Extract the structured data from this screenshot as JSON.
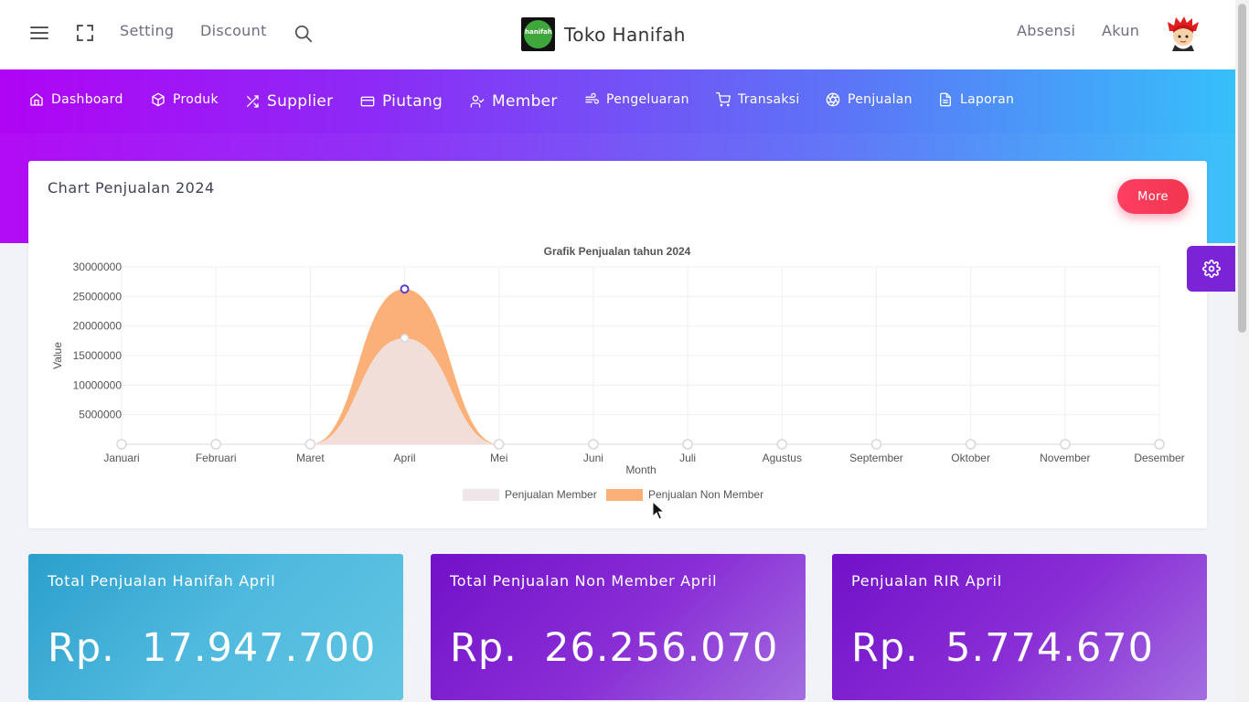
{
  "topbar": {
    "links": [
      "Setting",
      "Discount"
    ],
    "brand_name": "Toko Hanifah",
    "brand_logo_text": "hanifah",
    "right_links": [
      "Absensi",
      "Akun"
    ]
  },
  "nav": {
    "items": [
      {
        "label": "Dashboard",
        "icon": "home-icon"
      },
      {
        "label": "Produk",
        "icon": "box-icon"
      },
      {
        "label": "Supplier",
        "icon": "shuffle-icon"
      },
      {
        "label": "Piutang",
        "icon": "credit-card-icon"
      },
      {
        "label": "Member",
        "icon": "user-check-icon"
      },
      {
        "label": "Pengeluaran",
        "icon": "wind-icon"
      },
      {
        "label": "Transaksi",
        "icon": "cart-icon"
      },
      {
        "label": "Penjualan",
        "icon": "aperture-icon"
      },
      {
        "label": "Laporan",
        "icon": "file-icon"
      }
    ]
  },
  "chart_card": {
    "title": "Chart Penjualan 2024",
    "more_label": "More"
  },
  "chart_data": {
    "type": "area",
    "title": "Grafik Penjualan tahun 2024",
    "xlabel": "Month",
    "ylabel": "Value",
    "categories": [
      "Januari",
      "Februari",
      "Maret",
      "April",
      "Mei",
      "Juni",
      "Juli",
      "Agustus",
      "September",
      "Oktober",
      "November",
      "Desember"
    ],
    "yticks": [
      5000000,
      10000000,
      15000000,
      20000000,
      25000000,
      30000000
    ],
    "ylim": [
      0,
      30000000
    ],
    "series": [
      {
        "name": "Penjualan Member",
        "color": "#efe6ea",
        "values": [
          0,
          0,
          0,
          17947700,
          0,
          0,
          0,
          0,
          0,
          0,
          0,
          0
        ]
      },
      {
        "name": "Penjualan Non Member",
        "color": "#fbb077",
        "values": [
          0,
          0,
          0,
          26256070,
          0,
          0,
          0,
          0,
          0,
          0,
          0,
          0
        ]
      }
    ]
  },
  "stats": [
    {
      "label": "Total Penjualan Hanifah April",
      "value": "Rp.  17.947.700"
    },
    {
      "label": "Total Penjualan Non Member April",
      "value": "Rp.  26.256.070"
    },
    {
      "label": "Penjualan RIR April",
      "value": "Rp.  5.774.670"
    }
  ],
  "colors": {
    "accent_gradient_start": "#b004f5",
    "accent_gradient_end": "#36c0fa",
    "more_button": "#f5365c",
    "settings_tab": "#7b23d6"
  }
}
